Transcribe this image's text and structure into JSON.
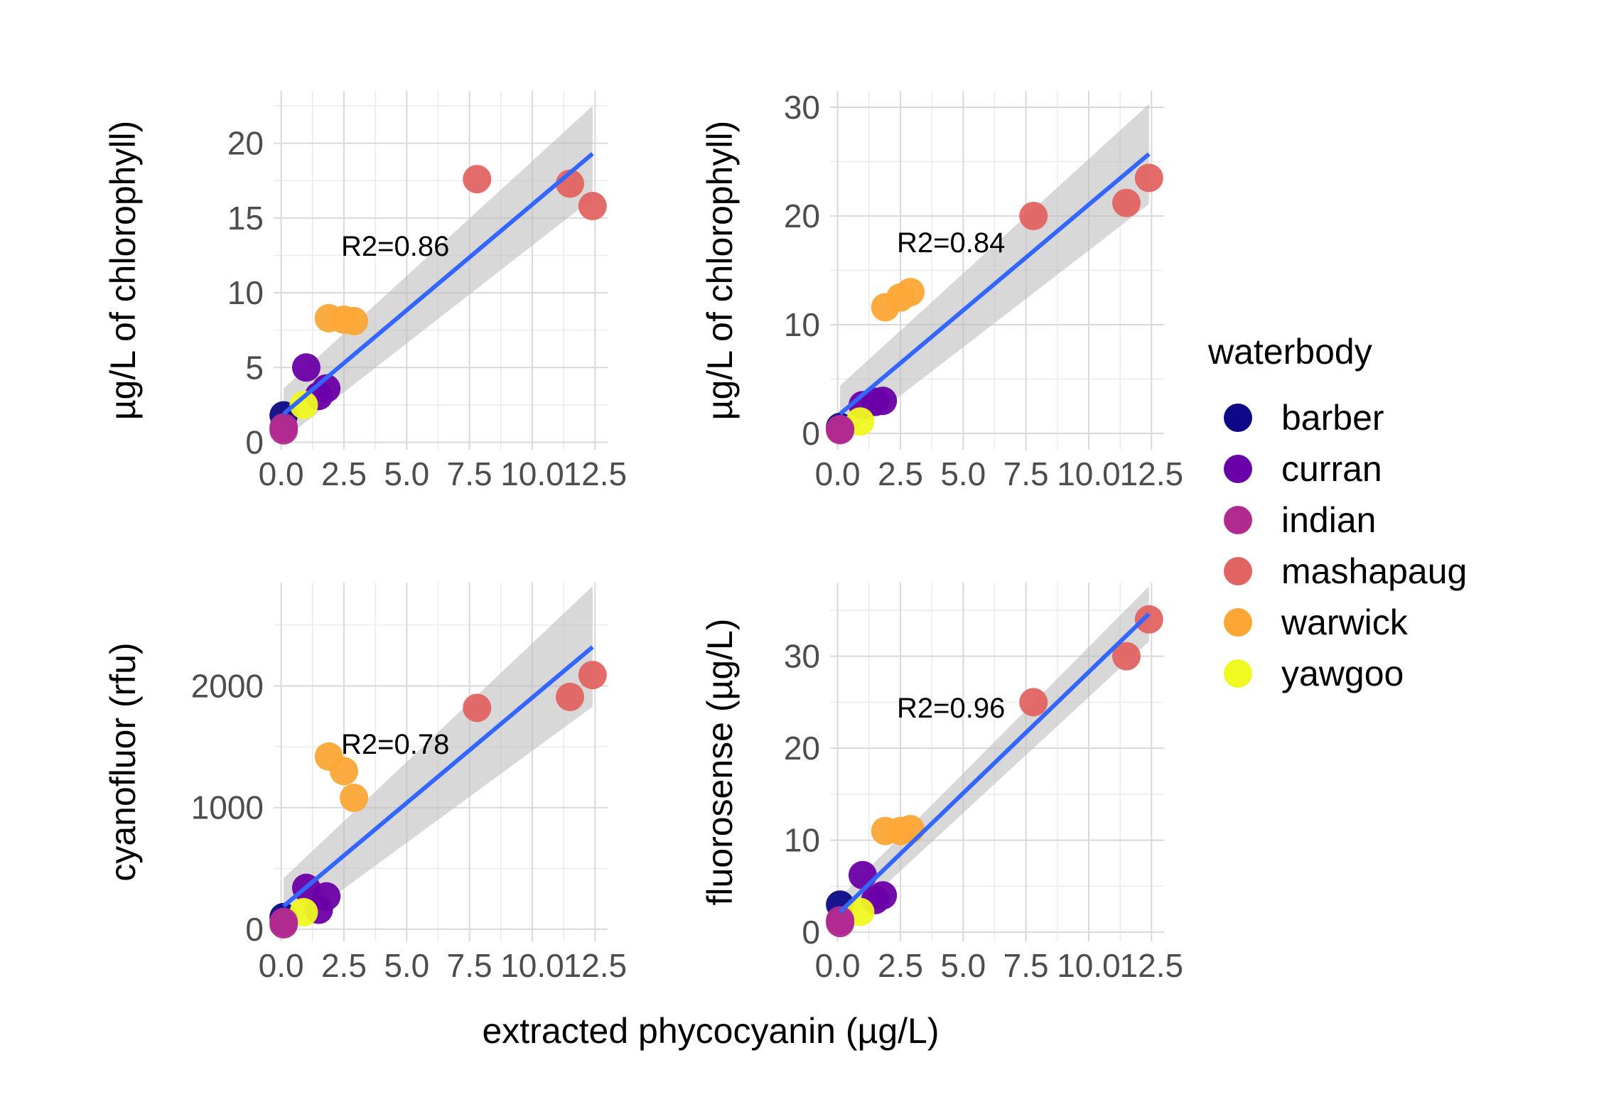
{
  "colors": {
    "barber": "#0d0887",
    "curran": "#6a00a8",
    "indian": "#b12a90",
    "mashapaug": "#e16462",
    "warwick": "#fca636",
    "yawgoo": "#f0f921",
    "fit_line": "#3366ff",
    "ribbon": "#bebebe",
    "grid": "#d9d9d9"
  },
  "x_axis_title": "extracted phycocyanin (µg/L)",
  "legend": {
    "title": "waterbody",
    "entries": [
      "barber",
      "curran",
      "indian",
      "mashapaug",
      "warwick",
      "yawgoo"
    ]
  },
  "chart_data": [
    {
      "type": "scatter",
      "ylabel": "µg/L of chlorophyll)",
      "annotation": "R2=0.86",
      "xlim": [
        -0.3,
        13.0
      ],
      "ylim": [
        -0.5,
        23.5
      ],
      "x_ticks": [
        "0.0",
        "2.5",
        "5.0",
        "7.5",
        "10.0",
        "12.5"
      ],
      "x_tick_values": [
        0,
        2.5,
        5,
        7.5,
        10,
        12.5
      ],
      "y_ticks": [
        "0",
        "5",
        "10",
        "15",
        "20"
      ],
      "y_tick_values": [
        0,
        5,
        10,
        15,
        20
      ],
      "fit": {
        "x": [
          0.1,
          12.4
        ],
        "y": [
          1.9,
          19.3
        ],
        "band": [
          [
            0.1,
            0.2,
            3.6
          ],
          [
            12.4,
            16.3,
            22.5
          ]
        ]
      },
      "points": [
        {
          "group": "mashapaug",
          "x": 7.8,
          "y": 17.6
        },
        {
          "group": "mashapaug",
          "x": 11.5,
          "y": 17.3
        },
        {
          "group": "mashapaug",
          "x": 12.4,
          "y": 15.8
        },
        {
          "group": "warwick",
          "x": 1.9,
          "y": 8.3
        },
        {
          "group": "warwick",
          "x": 2.5,
          "y": 8.2
        },
        {
          "group": "warwick",
          "x": 2.9,
          "y": 8.1
        },
        {
          "group": "barber",
          "x": 0.1,
          "y": 1.8
        },
        {
          "group": "curran",
          "x": 1.0,
          "y": 5.0
        },
        {
          "group": "curran",
          "x": 1.5,
          "y": 3.1
        },
        {
          "group": "curran",
          "x": 1.8,
          "y": 3.6
        },
        {
          "group": "yawgoo",
          "x": 0.9,
          "y": 2.5
        },
        {
          "group": "indian",
          "x": 0.1,
          "y": 0.8
        },
        {
          "group": "indian",
          "x": 0.1,
          "y": 1.0
        }
      ]
    },
    {
      "type": "scatter",
      "ylabel": "µg/L of chlorophyll)",
      "annotation": "R2=0.84",
      "xlim": [
        -0.3,
        13.0
      ],
      "ylim": [
        -1.5,
        31.5
      ],
      "x_ticks": [
        "0.0",
        "2.5",
        "5.0",
        "7.5",
        "10.0",
        "12.5"
      ],
      "x_tick_values": [
        0,
        2.5,
        5,
        7.5,
        10,
        12.5
      ],
      "y_ticks": [
        "0",
        "10",
        "20",
        "30"
      ],
      "y_tick_values": [
        0,
        10,
        20,
        30
      ],
      "fit": {
        "x": [
          0.1,
          12.4
        ],
        "y": [
          1.8,
          25.7
        ],
        "band": [
          [
            0.1,
            -0.8,
            4.4
          ],
          [
            12.4,
            21.1,
            30.3
          ]
        ]
      },
      "points": [
        {
          "group": "mashapaug",
          "x": 7.8,
          "y": 20.0
        },
        {
          "group": "mashapaug",
          "x": 11.5,
          "y": 21.2
        },
        {
          "group": "mashapaug",
          "x": 12.4,
          "y": 23.5
        },
        {
          "group": "warwick",
          "x": 1.9,
          "y": 11.6
        },
        {
          "group": "warwick",
          "x": 2.5,
          "y": 12.5
        },
        {
          "group": "warwick",
          "x": 2.9,
          "y": 13.0
        },
        {
          "group": "barber",
          "x": 0.1,
          "y": 0.6
        },
        {
          "group": "curran",
          "x": 1.0,
          "y": 2.6
        },
        {
          "group": "curran",
          "x": 1.5,
          "y": 2.9
        },
        {
          "group": "curran",
          "x": 1.8,
          "y": 3.0
        },
        {
          "group": "yawgoo",
          "x": 0.9,
          "y": 1.1
        },
        {
          "group": "indian",
          "x": 0.1,
          "y": 0.3
        },
        {
          "group": "indian",
          "x": 0.1,
          "y": 0.4
        }
      ]
    },
    {
      "type": "scatter",
      "ylabel": "cyanofluor (rfu)",
      "annotation": "R2=0.78",
      "xlim": [
        -0.3,
        13.0
      ],
      "ylim": [
        -100,
        2850
      ],
      "x_ticks": [
        "0.0",
        "2.5",
        "5.0",
        "7.5",
        "10.0",
        "12.5"
      ],
      "x_tick_values": [
        0,
        2.5,
        5,
        7.5,
        10,
        12.5
      ],
      "y_ticks": [
        "0",
        "1000",
        "2000"
      ],
      "y_tick_values": [
        0,
        1000,
        2000
      ],
      "fit": {
        "x": [
          0.1,
          12.4
        ],
        "y": [
          190,
          2320
        ],
        "band": [
          [
            0.1,
            -30,
            420
          ],
          [
            12.4,
            1830,
            2820
          ]
        ]
      },
      "points": [
        {
          "group": "mashapaug",
          "x": 7.8,
          "y": 1820
        },
        {
          "group": "mashapaug",
          "x": 11.5,
          "y": 1910
        },
        {
          "group": "mashapaug",
          "x": 12.4,
          "y": 2090
        },
        {
          "group": "warwick",
          "x": 1.9,
          "y": 1420
        },
        {
          "group": "warwick",
          "x": 2.5,
          "y": 1300
        },
        {
          "group": "warwick",
          "x": 2.9,
          "y": 1080
        },
        {
          "group": "barber",
          "x": 0.1,
          "y": 100
        },
        {
          "group": "curran",
          "x": 1.0,
          "y": 340
        },
        {
          "group": "curran",
          "x": 1.5,
          "y": 160
        },
        {
          "group": "curran",
          "x": 1.8,
          "y": 270
        },
        {
          "group": "yawgoo",
          "x": 0.9,
          "y": 140
        },
        {
          "group": "indian",
          "x": 0.1,
          "y": 40
        },
        {
          "group": "indian",
          "x": 0.1,
          "y": 60
        }
      ]
    },
    {
      "type": "scatter",
      "ylabel": "fluorosense (µg/L)",
      "annotation": "R2=0.96",
      "xlim": [
        -0.3,
        13.0
      ],
      "ylim": [
        -1.0,
        38.0
      ],
      "x_ticks": [
        "0.0",
        "2.5",
        "5.0",
        "7.5",
        "10.0",
        "12.5"
      ],
      "x_tick_values": [
        0,
        2.5,
        5,
        7.5,
        10,
        12.5
      ],
      "y_ticks": [
        "0",
        "10",
        "20",
        "30"
      ],
      "y_tick_values": [
        0,
        10,
        20,
        30
      ],
      "fit": {
        "x": [
          0.1,
          12.4
        ],
        "y": [
          2.2,
          34.6
        ],
        "band": [
          [
            0.1,
            0.6,
            3.8
          ],
          [
            12.4,
            31.6,
            37.6
          ]
        ]
      },
      "points": [
        {
          "group": "mashapaug",
          "x": 7.8,
          "y": 25.0
        },
        {
          "group": "mashapaug",
          "x": 11.5,
          "y": 30.0
        },
        {
          "group": "mashapaug",
          "x": 12.4,
          "y": 34.0
        },
        {
          "group": "warwick",
          "x": 1.9,
          "y": 11.0
        },
        {
          "group": "warwick",
          "x": 2.5,
          "y": 11.0
        },
        {
          "group": "warwick",
          "x": 2.9,
          "y": 11.2
        },
        {
          "group": "barber",
          "x": 0.1,
          "y": 3.0
        },
        {
          "group": "curran",
          "x": 1.0,
          "y": 6.2
        },
        {
          "group": "curran",
          "x": 1.5,
          "y": 3.5
        },
        {
          "group": "curran",
          "x": 1.8,
          "y": 4.0
        },
        {
          "group": "yawgoo",
          "x": 0.9,
          "y": 2.2
        },
        {
          "group": "indian",
          "x": 0.1,
          "y": 1.0
        },
        {
          "group": "indian",
          "x": 0.1,
          "y": 1.3
        }
      ]
    }
  ]
}
